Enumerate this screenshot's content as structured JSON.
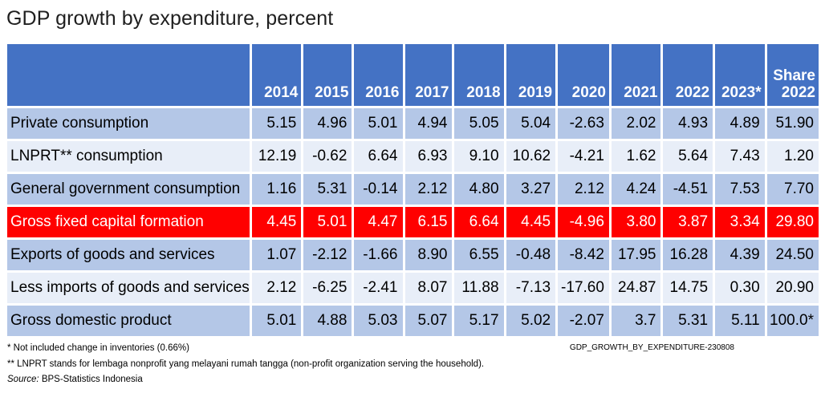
{
  "title": "GDP growth by expenditure, percent",
  "chart_data": {
    "type": "table",
    "title": "GDP growth by expenditure, percent",
    "columns": [
      "2014",
      "2015",
      "2016",
      "2017",
      "2018",
      "2019",
      "2020",
      "2021",
      "2022",
      "2023*"
    ],
    "share_header": [
      "Share",
      "2022"
    ],
    "rows": [
      {
        "label": "Private consumption",
        "values": [
          "5.15",
          "4.96",
          "5.01",
          "4.94",
          "5.05",
          "5.04",
          "-2.63",
          "2.02",
          "4.93",
          "4.89"
        ],
        "share": "51.90",
        "style": "odd"
      },
      {
        "label": "LNPRT** consumption",
        "values": [
          "12.19",
          "-0.62",
          "6.64",
          "6.93",
          "9.10",
          "10.62",
          "-4.21",
          "1.62",
          "5.64",
          "7.43"
        ],
        "share": "1.20",
        "style": "even"
      },
      {
        "label": "General government consumption",
        "values": [
          "1.16",
          "5.31",
          "-0.14",
          "2.12",
          "4.80",
          "3.27",
          "2.12",
          "4.24",
          "-4.51",
          "7.53"
        ],
        "share": "7.70",
        "style": "odd"
      },
      {
        "label": "Gross fixed capital formation",
        "values": [
          "4.45",
          "5.01",
          "4.47",
          "6.15",
          "6.64",
          "4.45",
          "-4.96",
          "3.80",
          "3.87",
          "3.34"
        ],
        "share": "29.80",
        "style": "hl"
      },
      {
        "label": "Exports of goods and services",
        "values": [
          "1.07",
          "-2.12",
          "-1.66",
          "8.90",
          "6.55",
          "-0.48",
          "-8.42",
          "17.95",
          "16.28",
          "4.39"
        ],
        "share": "24.50",
        "style": "odd"
      },
      {
        "label": "Less imports of goods and services",
        "values": [
          "2.12",
          "-6.25",
          "-2.41",
          "8.07",
          "11.88",
          "-7.13",
          "-17.60",
          "24.87",
          "14.75",
          "0.30"
        ],
        "share": "20.90",
        "style": "even"
      },
      {
        "label": "Gross domestic product",
        "values": [
          "5.01",
          "4.88",
          "5.03",
          "5.07",
          "5.17",
          "5.02",
          "-2.07",
          "3.7",
          "5.31",
          "5.11"
        ],
        "share": "100.0*",
        "style": "odd"
      }
    ],
    "highlight_color": "#ff0000",
    "header_color": "#4472c4"
  },
  "footnotes": {
    "note1": "* Not included change in inventories (0.66%)",
    "note2": "** LNPRT stands for lembaga nonprofit yang melayani rumah tangga (non-profit organization serving the household).",
    "source_label": "Source:",
    "source_text": " BPS-Statistics Indonesia"
  },
  "code": "GDP_GROWTH_BY_EXPENDITURE-230808"
}
